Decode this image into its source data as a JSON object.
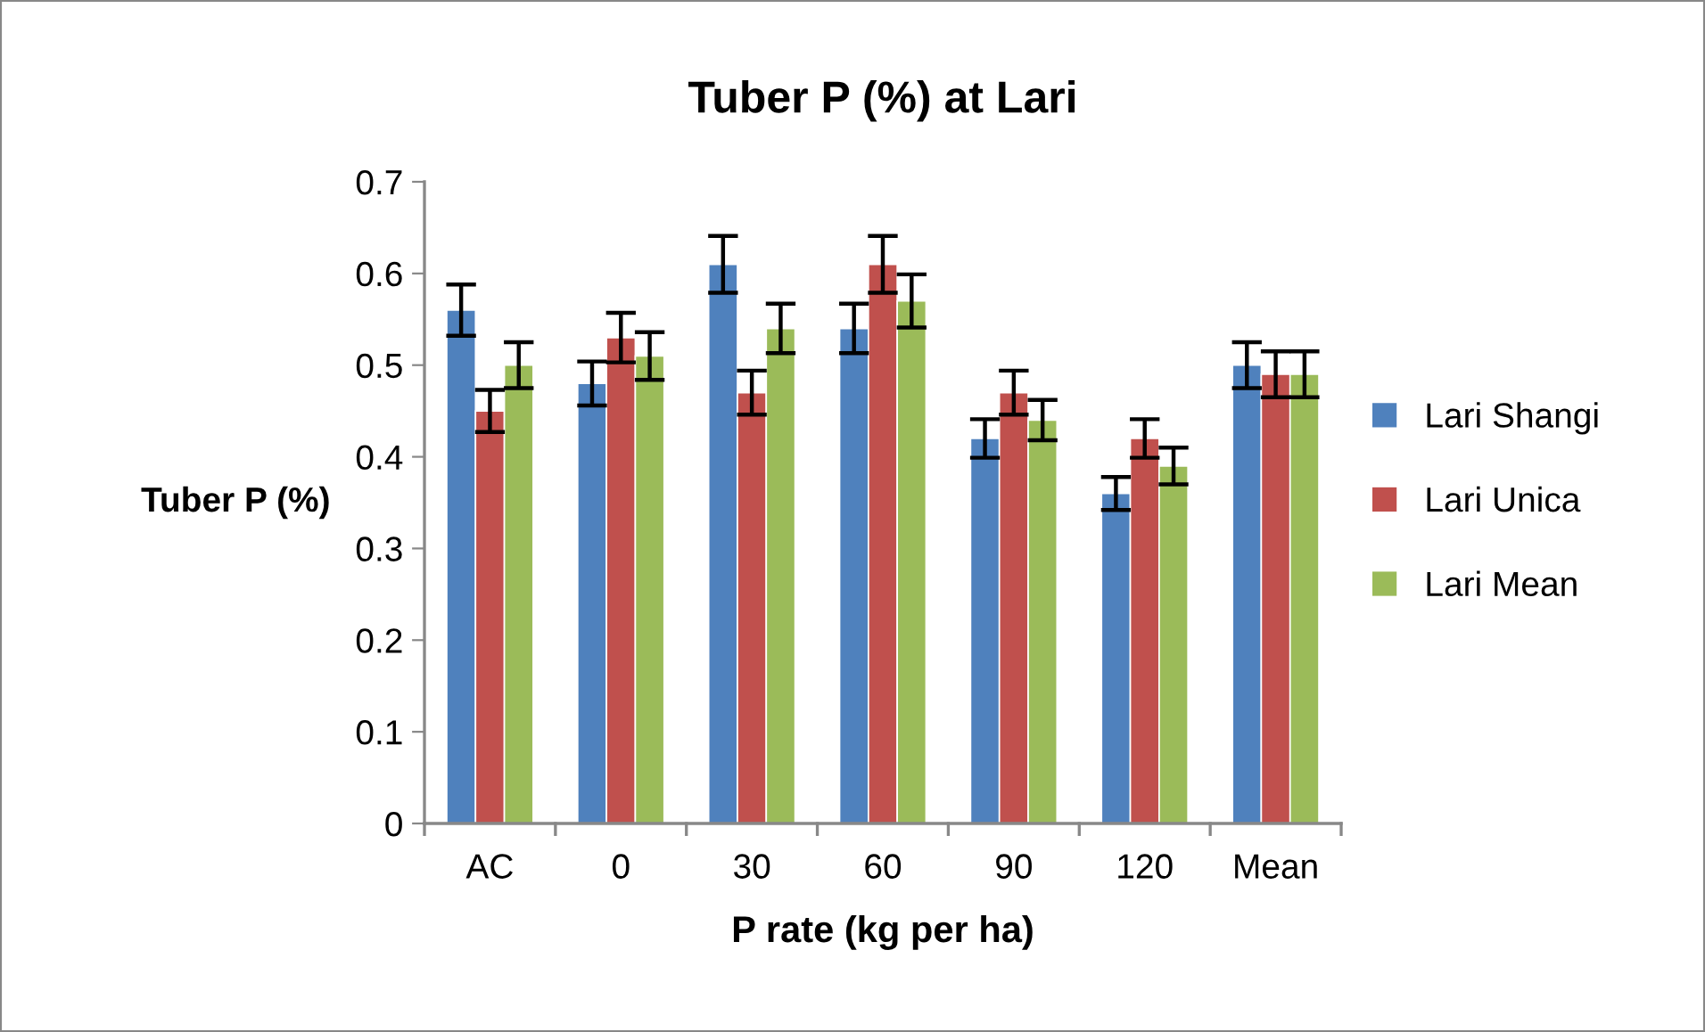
{
  "chart_data": {
    "type": "bar",
    "title": "Tuber P (%) at Lari",
    "xlabel": "P rate (kg per ha)",
    "ylabel": "Tuber P (%)",
    "categories": [
      "AC",
      "0",
      "30",
      "60",
      "90",
      "120",
      "Mean"
    ],
    "series": [
      {
        "name": "Lari Shangi",
        "color": "#4f81bd",
        "values": [
          0.56,
          0.48,
          0.61,
          0.54,
          0.42,
          0.36,
          0.5
        ],
        "errors": [
          0.028,
          0.024,
          0.031,
          0.027,
          0.021,
          0.018,
          0.025
        ]
      },
      {
        "name": "Lari Unica",
        "color": "#c0504d",
        "values": [
          0.45,
          0.53,
          0.47,
          0.61,
          0.47,
          0.42,
          0.49
        ],
        "errors": [
          0.023,
          0.027,
          0.024,
          0.031,
          0.024,
          0.021,
          0.025
        ]
      },
      {
        "name": "Lari Mean",
        "color": "#9bbb59",
        "values": [
          0.5,
          0.51,
          0.54,
          0.57,
          0.44,
          0.39,
          0.49
        ],
        "errors": [
          0.025,
          0.026,
          0.027,
          0.029,
          0.022,
          0.02,
          0.025
        ]
      }
    ],
    "ylim": [
      0,
      0.7
    ],
    "yticks": [
      0,
      0.1,
      0.2,
      0.3,
      0.4,
      0.5,
      0.6,
      0.7
    ],
    "grid": false,
    "legend": "right"
  }
}
